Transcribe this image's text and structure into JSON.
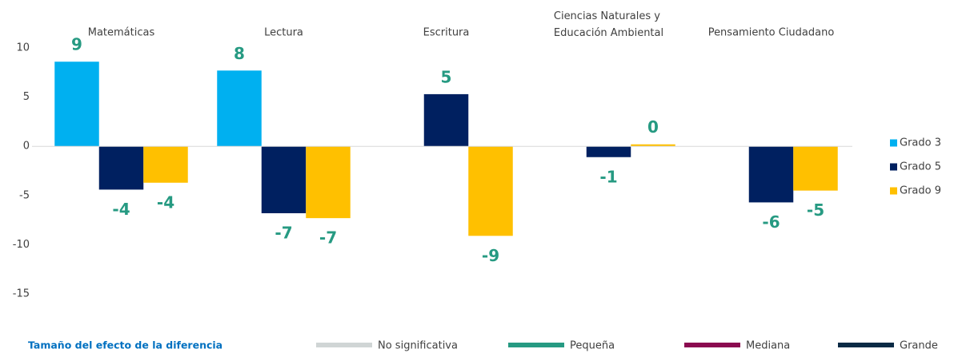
{
  "chart_data": {
    "type": "bar",
    "categories": [
      "Matemáticas",
      "Lectura",
      "Escritura",
      "Ciencias Naturales y Educación Ambiental",
      "Pensamiento Ciudadano"
    ],
    "series": [
      {
        "name": "Grado 3",
        "color": "#00b0f0",
        "values": [
          8.6,
          7.7,
          null,
          null,
          null
        ],
        "value_labels": [
          "9",
          "8",
          null,
          null,
          null
        ]
      },
      {
        "name": "Grado 5",
        "color": "#002060",
        "values": [
          -4.4,
          -6.8,
          5.3,
          -1.1,
          -5.7
        ],
        "value_labels": [
          "-4",
          "-7",
          "5",
          "-1",
          "-6"
        ]
      },
      {
        "name": "Grado 9",
        "color": "#ffc000",
        "values": [
          -3.7,
          -7.3,
          -9.1,
          0.2,
          -4.5
        ],
        "value_labels": [
          "-4",
          "-7",
          "-9",
          "0",
          "-5"
        ]
      }
    ],
    "ylim": [
      -15,
      10
    ],
    "yticks": [
      10,
      5,
      0,
      -5,
      -10,
      -15
    ],
    "grid": false,
    "legend": "right",
    "effect_legend": {
      "title": "Tamaño del efecto de la diferencia",
      "items": [
        {
          "name": "No significativa",
          "color": "#d0d5d5"
        },
        {
          "name": "Pequeña",
          "color": "#269a82"
        },
        {
          "name": "Mediana",
          "color": "#8b0a50"
        },
        {
          "name": "Grande",
          "color": "#0a2a45"
        }
      ]
    }
  }
}
